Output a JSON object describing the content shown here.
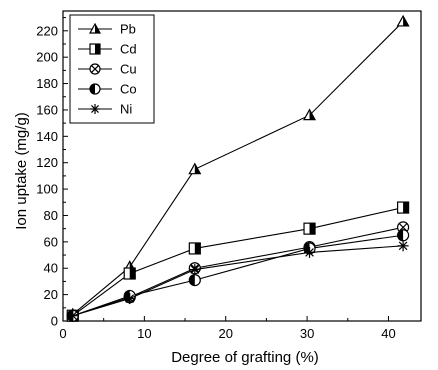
{
  "chart_data": {
    "type": "line",
    "xlabel": "Degree of grafting (%)",
    "ylabel": "Ion uptake (mg/g)",
    "xlim": [
      0,
      44
    ],
    "ylim": [
      0,
      235
    ],
    "xticks": [
      0,
      10,
      20,
      30,
      40
    ],
    "yticks": [
      0,
      10,
      20,
      30,
      40,
      50,
      60,
      70,
      80,
      90,
      100,
      110,
      120,
      130,
      140,
      150,
      160,
      170,
      180,
      190,
      200,
      210,
      220,
      230
    ],
    "ytick_labels": [
      0,
      20,
      40,
      60,
      80,
      100,
      120,
      140,
      160,
      180,
      200,
      220
    ],
    "grid": false,
    "legend_position": "top-left",
    "x": [
      1.2,
      8.2,
      16.2,
      30.3,
      41.8
    ],
    "series": [
      {
        "name": "Pb",
        "marker": "triangle",
        "values": [
          5,
          41,
          115,
          156,
          227
        ]
      },
      {
        "name": "Cd",
        "marker": "half-square",
        "values": [
          4,
          36,
          55,
          70,
          86
        ]
      },
      {
        "name": "Cu",
        "marker": "crossed-circle",
        "values": [
          4,
          18,
          40,
          56,
          71
        ]
      },
      {
        "name": "Co",
        "marker": "half-circle",
        "values": [
          4,
          19,
          31,
          55,
          65
        ]
      },
      {
        "name": "Ni",
        "marker": "asterisk",
        "values": [
          4,
          17,
          39,
          52,
          57
        ]
      }
    ]
  }
}
